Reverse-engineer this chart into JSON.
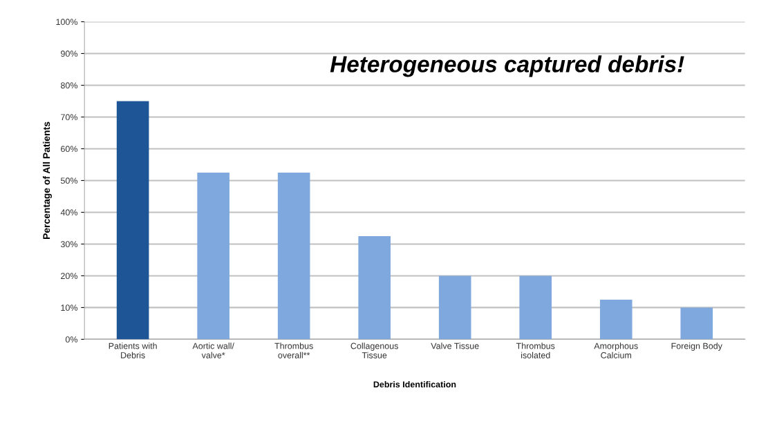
{
  "chart_data": {
    "type": "bar",
    "title": "Heterogeneous captured debris!",
    "xlabel": "Debris Identification",
    "ylabel": "Percentage of All Patients",
    "categories": [
      "Patients with\nDebris",
      "Aortic wall/\nvalve*",
      "Thrombus\noverall**",
      "Collagenous\nTissue",
      "Valve Tissue",
      "Thrombus\nisolated",
      "Amorphous\nCalcium",
      "Foreign Body"
    ],
    "values": [
      75,
      52.5,
      52.5,
      32.5,
      20,
      20,
      12.5,
      10
    ],
    "colors": [
      "#1d5596",
      "#7fa8de",
      "#7fa8de",
      "#7fa8de",
      "#7fa8de",
      "#7fa8de",
      "#7fa8de",
      "#7fa8de"
    ],
    "ylim": [
      0,
      100
    ],
    "yticks": [
      {
        "value": 0,
        "label": "0%"
      },
      {
        "value": 10,
        "label": "10%"
      },
      {
        "value": 20,
        "label": "20%"
      },
      {
        "value": 30,
        "label": "30%"
      },
      {
        "value": 40,
        "label": "40%"
      },
      {
        "value": 50,
        "label": "50%"
      },
      {
        "value": 60,
        "label": "60%"
      },
      {
        "value": 70,
        "label": "70%"
      },
      {
        "value": 80,
        "label": "80%"
      },
      {
        "value": 90,
        "label": "90%"
      },
      {
        "value": 100,
        "label": "100%"
      }
    ],
    "grid": "y",
    "legend": false
  }
}
